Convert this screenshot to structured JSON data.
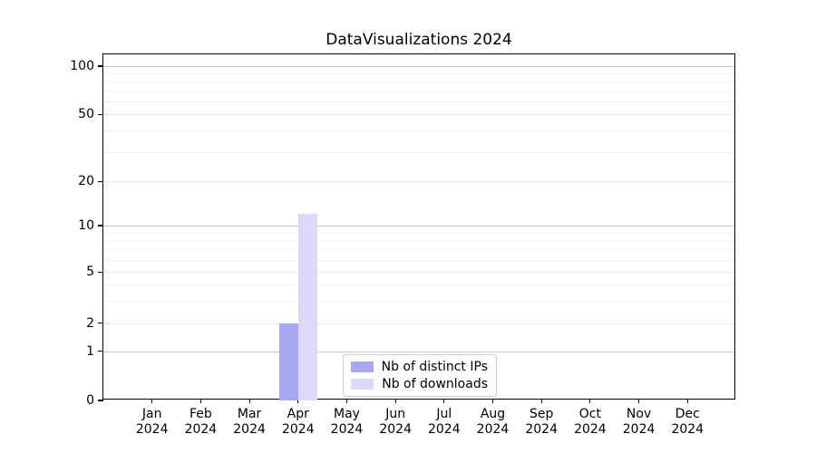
{
  "chart_data": {
    "type": "bar",
    "title": "DataVisualizations 2024",
    "categories": [
      "Jan",
      "Feb",
      "Mar",
      "Apr",
      "May",
      "Jun",
      "Jul",
      "Aug",
      "Sep",
      "Oct",
      "Nov",
      "Dec"
    ],
    "year_label": "2024",
    "series": [
      {
        "name": "Nb of distinct IPs",
        "color": "#a6a6f2",
        "values": [
          0,
          0,
          0,
          2,
          0,
          0,
          0,
          0,
          0,
          0,
          0,
          0
        ]
      },
      {
        "name": "Nb of downloads",
        "color": "#dadaf8",
        "values": [
          0,
          0,
          0,
          12,
          0,
          0,
          0,
          0,
          0,
          0,
          0,
          0
        ]
      }
    ],
    "yscale": "symlog",
    "yticks": [
      0,
      1,
      2,
      5,
      10,
      20,
      50,
      100
    ],
    "ylim": [
      0,
      115
    ],
    "xlabel": "",
    "ylabel": "",
    "grid": "horizontal major and log-minor gridlines",
    "legend_position": "lower center",
    "axis_color": "#000000",
    "grid_major_color": "#c6c6c6",
    "grid_minor_color": "#efefef"
  }
}
